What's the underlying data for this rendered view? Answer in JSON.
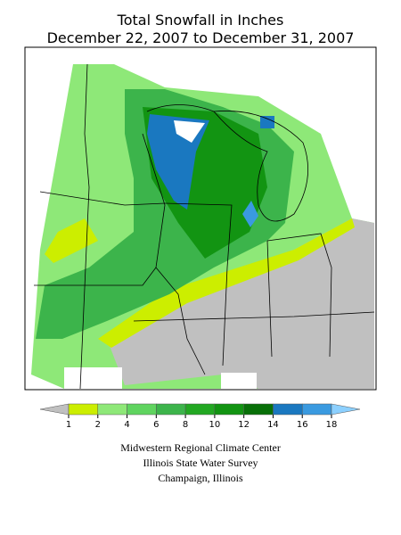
{
  "header": {
    "title": [
      "Total Snowfall in Inches",
      "December 22, 2007 to December 31, 2007"
    ]
  },
  "legend": {
    "ticks": [
      1,
      2,
      4,
      6,
      8,
      10,
      12,
      14,
      16,
      18
    ],
    "colors": [
      "#c0c0c0",
      "#ccee00",
      "#8ee878",
      "#5fd45f",
      "#3cb44b",
      "#22a822",
      "#129412",
      "#087008",
      "#1a78c0",
      "#3a9ae0",
      "#8cd0ff"
    ]
  },
  "credits": [
    "Midwestern Regional Climate Center",
    "Illinois State Water Survey",
    "Champaign, Illinois"
  ]
}
